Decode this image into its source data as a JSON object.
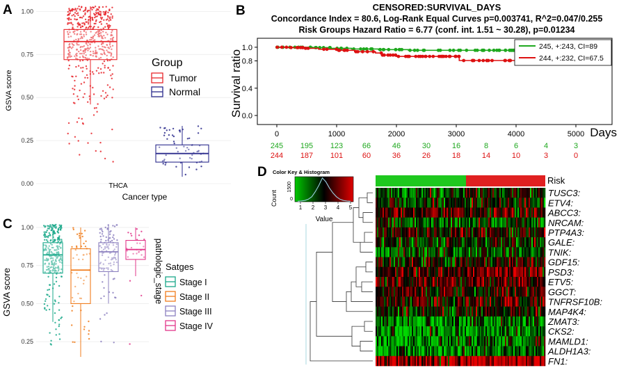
{
  "panels": {
    "a": {
      "letter": "A"
    },
    "b": {
      "letter": "B"
    },
    "c": {
      "letter": "C"
    },
    "d": {
      "letter": "D"
    }
  },
  "chart_data": [
    {
      "id": "A",
      "type": "boxplot",
      "xlabel": "Cancer type",
      "category_label": "THCA",
      "ylabel": "GSVA score",
      "ylim": [
        0,
        1.05
      ],
      "yticks": [
        "0.00",
        "0.25",
        "0.50",
        "0.75",
        "1.00"
      ],
      "ytick_values": [
        0,
        0.25,
        0.5,
        0.75,
        1.0
      ],
      "legend": {
        "title": "Group",
        "position": "right"
      },
      "series": [
        {
          "name": "Tumor",
          "color": "#e8262b",
          "q1": 0.72,
          "median": 0.825,
          "q3": 0.895,
          "whisker_low": 0.46,
          "whisker_high": 1.03,
          "n_points": 510
        },
        {
          "name": "Normal",
          "color": "#2a2a8c",
          "q1": 0.125,
          "median": 0.175,
          "q3": 0.225,
          "whisker_low": 0.04,
          "whisker_high": 0.335,
          "n_points": 59
        }
      ]
    },
    {
      "id": "B",
      "type": "line",
      "title": "CENSORED:SURVIVAL_DAYS",
      "subtitle": "Concordance Index = 80.6, Log-Rank Equal Curves p=0.003741, R^2=0.047/0.255",
      "subtitle2": "Risk Groups Hazard Ratio = 6.77 (conf. int. 1.51 ~ 30.28), p=0.01234",
      "xlabel": "Days",
      "ylabel": "Survival ratio",
      "xlim": [
        0,
        5000
      ],
      "ylim": [
        0,
        1.05
      ],
      "xticks": [
        0,
        1000,
        2000,
        3000,
        4000,
        5000
      ],
      "yticks": [
        "0.0",
        "0.4",
        "0.8",
        "1.0"
      ],
      "ytick_values": [
        0,
        0.4,
        0.8,
        1.0
      ],
      "legend": {
        "position": "top-right"
      },
      "series": [
        {
          "name": "245, +:243, CI=89",
          "color": "#1ea81e",
          "x": [
            0,
            250,
            600,
            900,
            1250,
            1700,
            2200,
            3000,
            4000,
            4800
          ],
          "y": [
            1.0,
            1.0,
            0.995,
            0.985,
            0.975,
            0.965,
            0.955,
            0.955,
            0.955,
            0.955
          ]
        },
        {
          "name": "244, +:232, CI=67.5",
          "color": "#dd1111",
          "x": [
            0,
            200,
            450,
            700,
            1000,
            1300,
            1650,
            1750,
            2000,
            2450,
            2950,
            3050,
            4000,
            4800
          ],
          "y": [
            1.0,
            0.995,
            0.985,
            0.97,
            0.955,
            0.935,
            0.915,
            0.885,
            0.865,
            0.865,
            0.865,
            0.805,
            0.805,
            0.805
          ]
        }
      ],
      "risk_table": {
        "times": [
          0,
          500,
          1000,
          1500,
          2000,
          2500,
          3000,
          3500,
          4000,
          4500,
          5000
        ],
        "rows": [
          {
            "color": "#1ea81e",
            "values": [
              "245",
              "195",
              "123",
              "66",
              "46",
              "30",
              "16",
              "8",
              "6",
              "4",
              "3"
            ]
          },
          {
            "color": "#dd1111",
            "values": [
              "244",
              "187",
              "101",
              "60",
              "36",
              "26",
              "18",
              "14",
              "10",
              "3",
              "0"
            ]
          }
        ]
      }
    },
    {
      "id": "C",
      "type": "boxplot",
      "ylabel": "GSVA score",
      "xlabel": "pathologic_stage",
      "ylim": [
        0.1,
        1.05
      ],
      "yticks": [
        "0.25",
        "0.50",
        "0.75",
        "1.00"
      ],
      "ytick_values": [
        0.25,
        0.5,
        0.75,
        1.0
      ],
      "legend": {
        "title": "Satges",
        "position": "right"
      },
      "series": [
        {
          "name": "Stage I",
          "color": "#1aa88a",
          "q1": 0.7,
          "median": 0.82,
          "q3": 0.9,
          "whisker_low": 0.38,
          "whisker_high": 1.02,
          "n_points": 280
        },
        {
          "name": "Stage II",
          "color": "#f07c1c",
          "q1": 0.5,
          "median": 0.72,
          "q3": 0.86,
          "whisker_low": 0.15,
          "whisker_high": 1.0,
          "n_points": 52
        },
        {
          "name": "Stage III",
          "color": "#8c80bf",
          "q1": 0.71,
          "median": 0.84,
          "q3": 0.9,
          "whisker_low": 0.5,
          "whisker_high": 1.02,
          "n_points": 110
        },
        {
          "name": "Stage IV",
          "color": "#e2378a",
          "q1": 0.79,
          "median": 0.855,
          "q3": 0.915,
          "whisker_low": 0.68,
          "whisker_high": 1.0,
          "n_points": 26
        }
      ]
    },
    {
      "id": "D",
      "type": "heatmap",
      "annotation_label": "Risk",
      "annotation_colors": [
        "#1ec81e",
        "#e02020"
      ],
      "color_key": {
        "title": "Color Key & Histogram",
        "ylabel": "Count",
        "xlabel": "Value",
        "xticks": [
          "1",
          "2",
          "3",
          "4",
          "5"
        ],
        "yticks": [
          "0",
          "1500"
        ],
        "low_color": "#00c800",
        "mid_color": "#000000",
        "high_color": "#e00000"
      },
      "genes": [
        "TUSC3:",
        "ETV4:",
        "ABCC3:",
        "NRCAM:",
        "PTP4A3:",
        "GALE:",
        "TNIK:",
        "GDF15:",
        "PSD3:",
        "ETV5:",
        "GGCT:",
        "TNFRSF10B:",
        "MAP4K4:",
        "ZMAT3:",
        "CKS2:",
        "MAMLD1:",
        "ALDH1A3:",
        "FN1:"
      ],
      "row_bias": [
        -0.2,
        -0.1,
        0.25,
        -0.25,
        0.1,
        -0.15,
        -0.3,
        0.05,
        0.35,
        0.3,
        0.2,
        0.25,
        0.05,
        -0.55,
        -0.6,
        -0.5,
        -0.55,
        0.8
      ]
    }
  ]
}
